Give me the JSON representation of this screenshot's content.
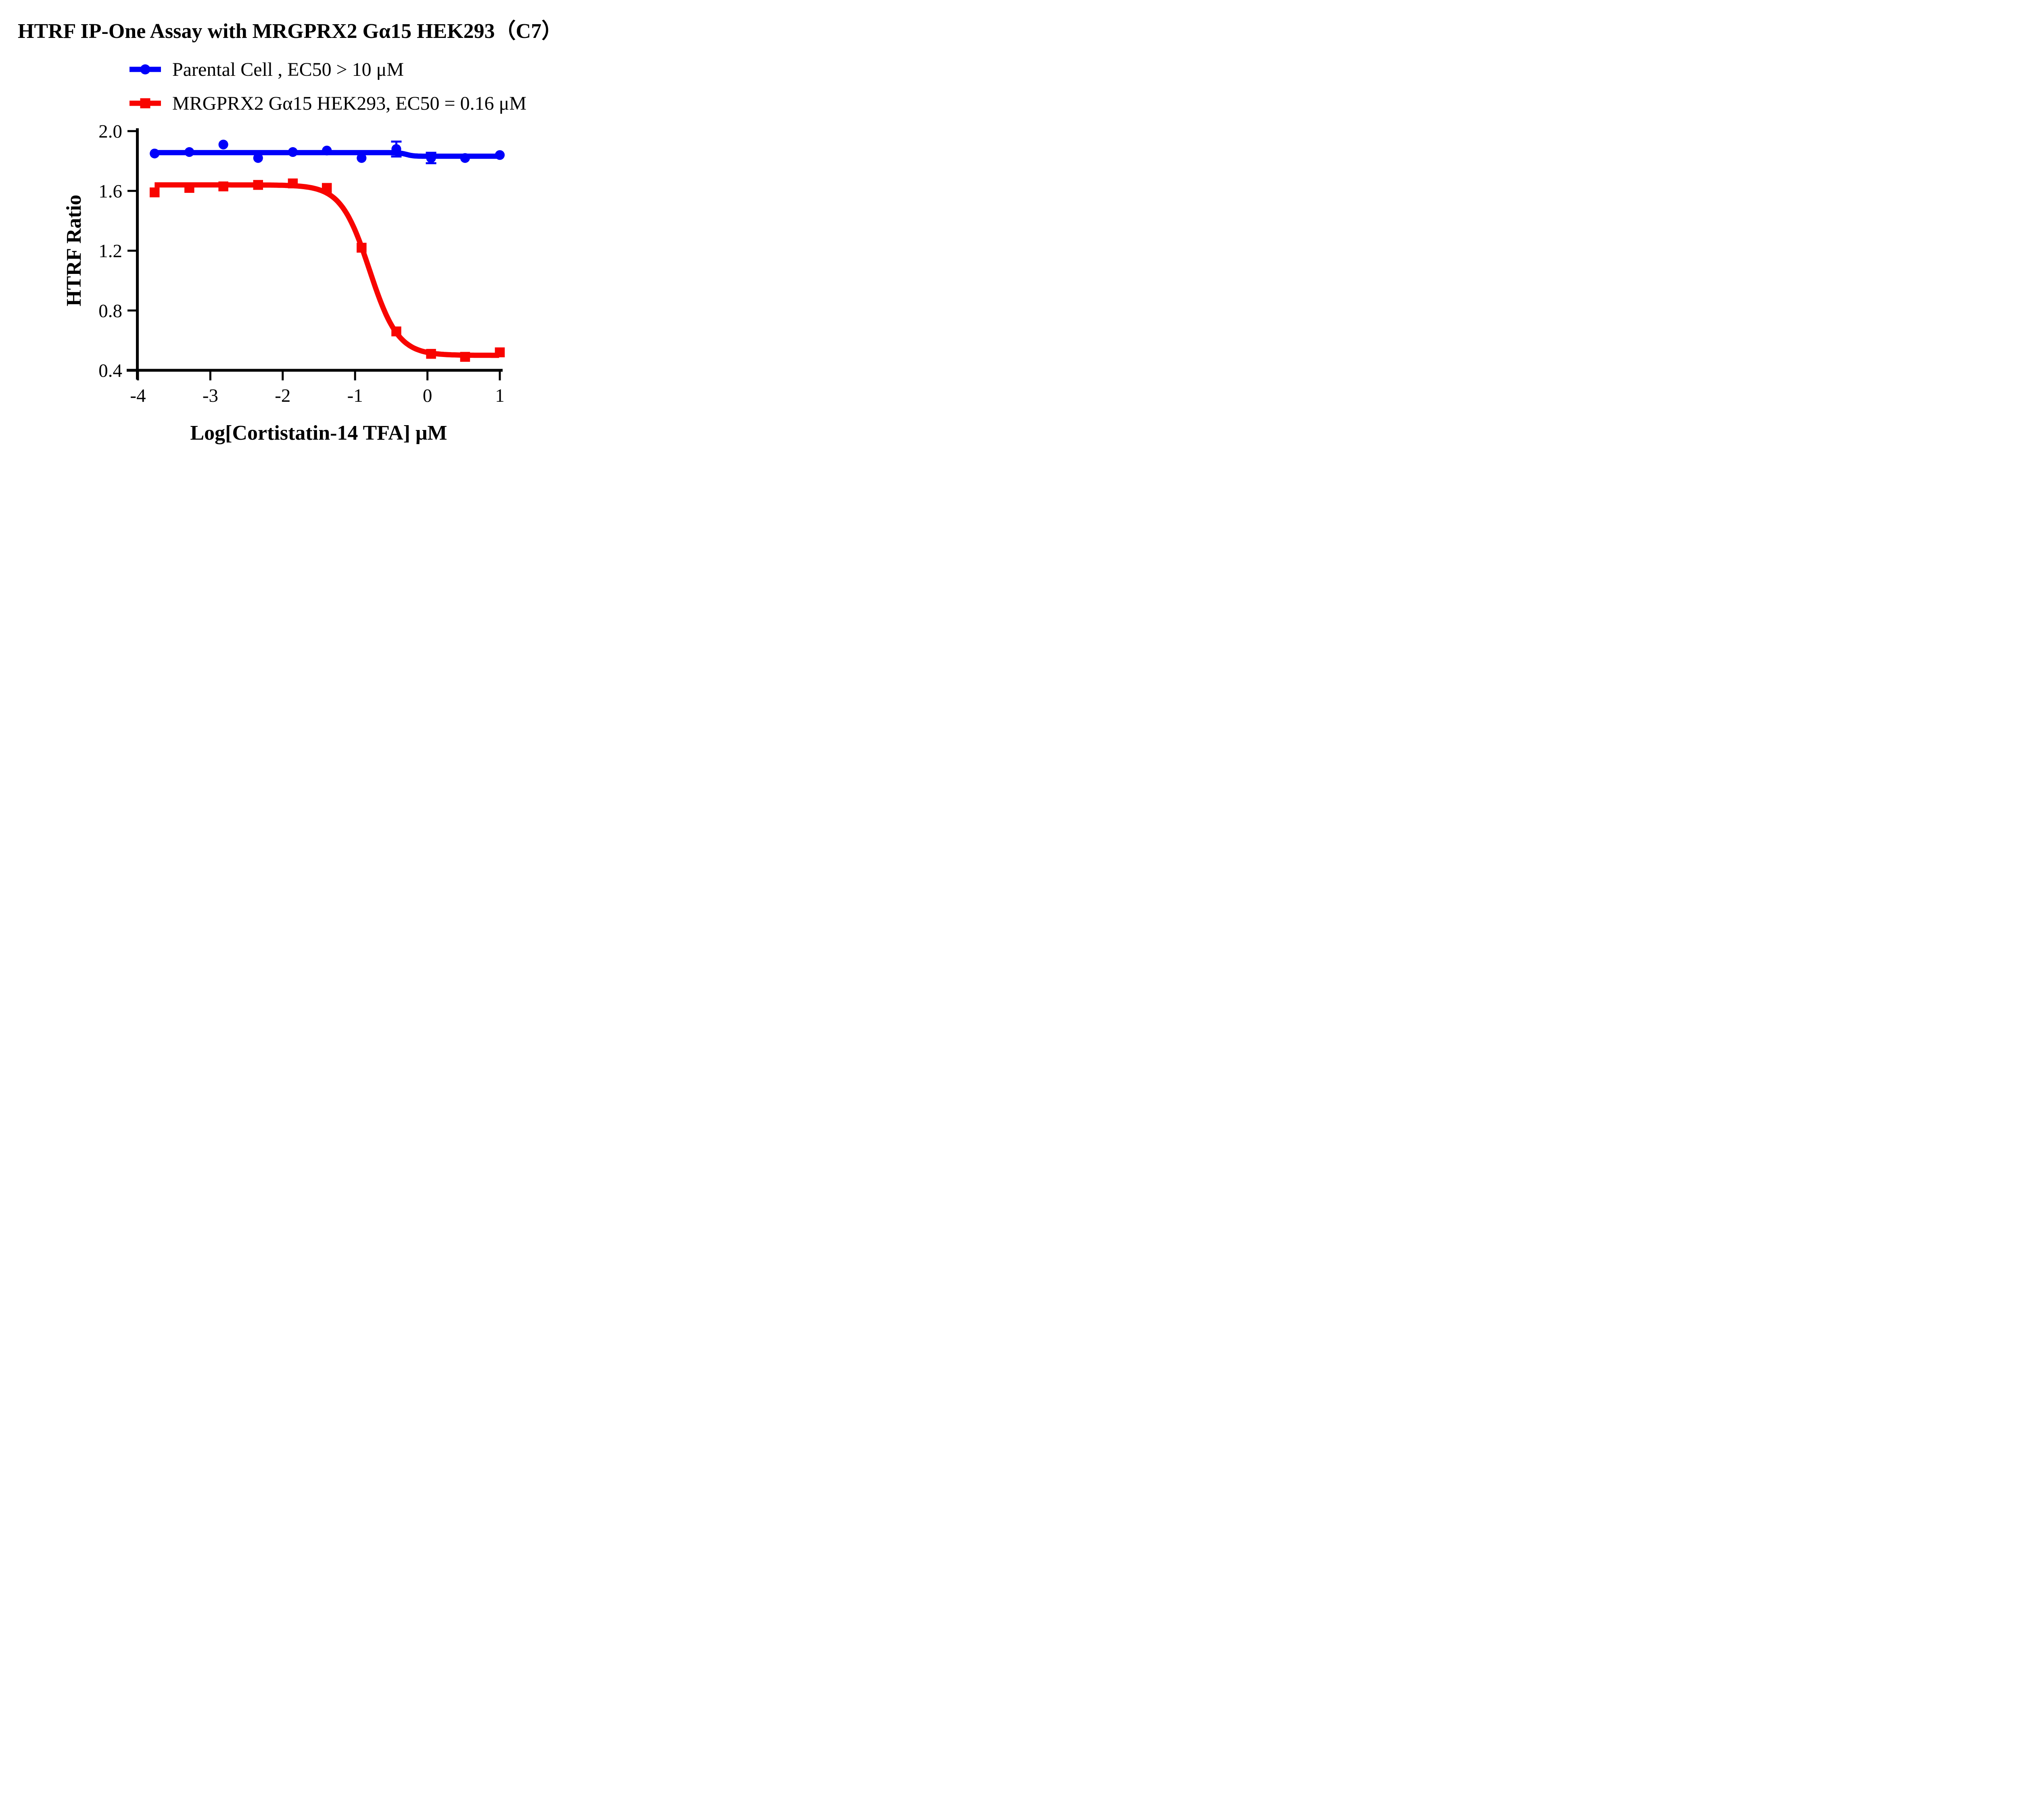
{
  "title": "HTRF IP-One Assay with MRGPRX2 Gα15 HEK293（C7）",
  "colors": {
    "parental": "#0000FA",
    "mrgprx2": "#F80400",
    "axis": "#000000",
    "background": "#FFFFFF"
  },
  "legend": [
    {
      "label": "Parental Cell ,  EC50 > 10 μM",
      "marker": "circle",
      "series": "parental"
    },
    {
      "label": "MRGPRX2 Gα15 HEK293,  EC50 = 0.16 μM",
      "marker": "square",
      "series": "mrgprx2"
    }
  ],
  "chart_data": {
    "type": "scatter",
    "subtype": "dose-response curves with fitted lines",
    "title": "HTRF IP-One Assay with MRGPRX2 Gα15 HEK293（C7）",
    "xlabel": "Log[Cortistatin-14 TFA] μM",
    "ylabel": "HTRF Ratio",
    "xlim": [
      -4,
      1.05
    ],
    "ylim": [
      0.4,
      2.0
    ],
    "grid": false,
    "legend_position": "top-left, above plot",
    "x_ticks": [
      -4,
      -3,
      -2,
      -1,
      0,
      1
    ],
    "x_tick_labels": [
      "-4",
      "-3",
      "-2",
      "-1",
      "0",
      "1"
    ],
    "y_ticks": [
      2.0,
      1.6,
      1.2,
      0.8,
      0.4
    ],
    "y_tick_labels": [
      "2.0",
      "1.6",
      "1.2",
      "0.8",
      "0.4"
    ],
    "series": [
      {
        "name": "Parental Cell",
        "ec50_label": "EC50 > 10 μM",
        "marker": "circle",
        "color": "#0000FA",
        "x": [
          -3.77,
          -3.29,
          -2.82,
          -2.34,
          -1.86,
          -1.39,
          -0.91,
          -0.43,
          0.05,
          0.52,
          1.0
        ],
        "y": [
          1.85,
          1.86,
          1.91,
          1.82,
          1.86,
          1.87,
          1.82,
          1.88,
          1.82,
          1.82,
          1.84
        ],
        "error_bars": [
          {
            "x": -0.43,
            "y": 1.88,
            "plus": 0.05,
            "minus": 0.05
          },
          {
            "x": 0.05,
            "y": 1.82,
            "plus": 0.035,
            "minus": 0.035
          }
        ],
        "fit": {
          "type": "step",
          "left_level": 1.856,
          "right_level": 1.832,
          "center": -0.29,
          "steepness": 9
        }
      },
      {
        "name": "MRGPRX2 Gα15 HEK293",
        "ec50_label": "EC50 = 0.16 μM",
        "marker": "square",
        "color": "#F80400",
        "x": [
          -3.77,
          -3.29,
          -2.82,
          -2.34,
          -1.86,
          -1.39,
          -0.91,
          -0.43,
          0.05,
          0.52,
          1.0
        ],
        "y": [
          1.59,
          1.62,
          1.63,
          1.64,
          1.65,
          1.62,
          1.22,
          0.66,
          0.51,
          0.49,
          0.52
        ],
        "error_bars": [],
        "fit": {
          "type": "4pl",
          "top": 1.64,
          "bottom": 0.5,
          "logec50": -0.8,
          "hill": 2.2
        }
      }
    ]
  }
}
